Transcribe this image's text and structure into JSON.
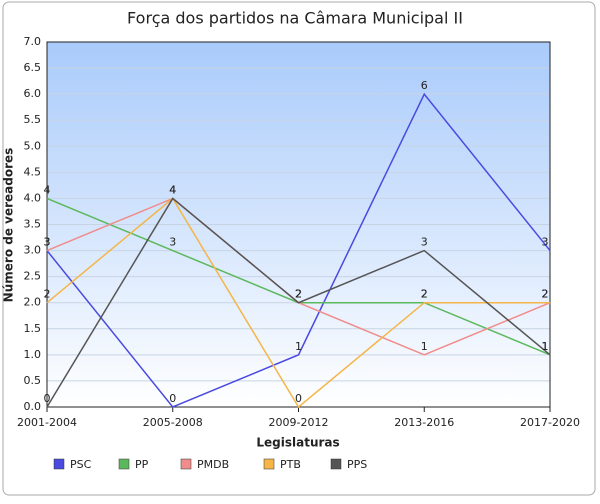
{
  "chart_data": {
    "type": "line",
    "title": "Força dos partidos na Câmara Municipal II",
    "x_label": "Legislaturas",
    "y_label": "Número de vereadores",
    "categories": [
      "2001-2004",
      "2005-2008",
      "2009-2012",
      "2013-2016",
      "2017-2020"
    ],
    "series": [
      {
        "name": "PSC",
        "color": "#4a4ae0",
        "values": [
          3,
          0,
          1,
          6,
          3
        ]
      },
      {
        "name": "PP",
        "color": "#5cb85c",
        "values": [
          4,
          3,
          2,
          2,
          1
        ]
      },
      {
        "name": "PMDB",
        "color": "#f08c8c",
        "values": [
          3,
          4,
          2,
          1,
          2
        ]
      },
      {
        "name": "PTB",
        "color": "#f5b547",
        "values": [
          2,
          4,
          0,
          2,
          2
        ]
      },
      {
        "name": "PPS",
        "color": "#555555",
        "values": [
          0,
          4,
          2,
          3,
          1
        ]
      }
    ],
    "ylim": [
      0,
      7
    ],
    "yticks": [
      {
        "value": 0,
        "label": "0.0"
      },
      0.5,
      {
        "value": 1,
        "label": "1.0"
      },
      1.5,
      {
        "value": 2,
        "label": "2.0"
      },
      2.5,
      {
        "value": 3,
        "label": "3.0"
      },
      3.5,
      {
        "value": 4,
        "label": "4.0"
      },
      4.5,
      {
        "value": 5,
        "label": "5.0"
      },
      5.5,
      {
        "value": 6,
        "label": "6.0"
      },
      6.5,
      {
        "value": 7,
        "label": "7.0"
      }
    ],
    "grid": true,
    "legend": "bottom"
  }
}
